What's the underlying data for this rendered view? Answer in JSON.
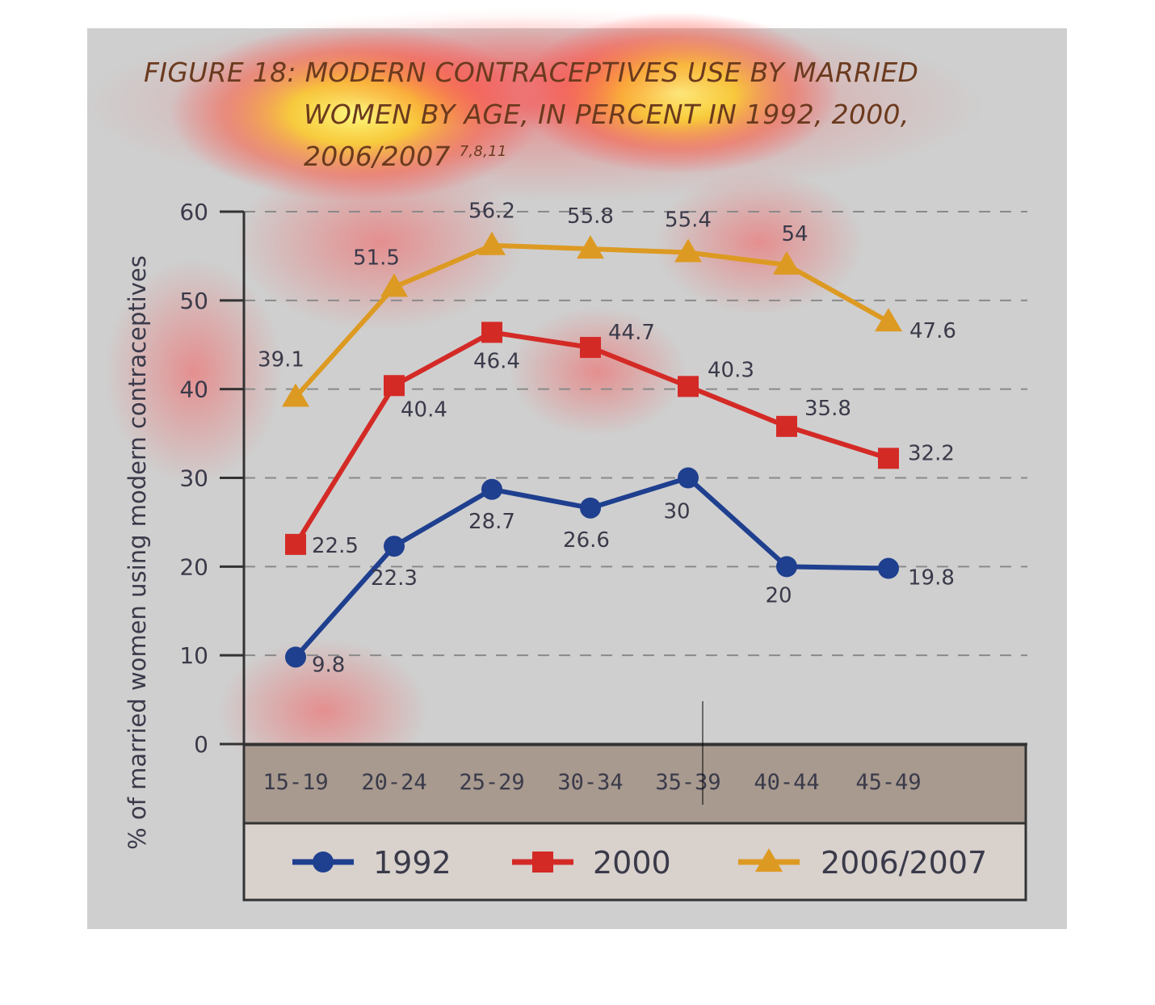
{
  "title": {
    "line1": "FIGURE 18: MODERN CONTRACEPTIVES USE BY MARRIED",
    "line2": "WOMEN BY AGE, IN PERCENT IN 1992, 2000,",
    "line3": "2006/2007",
    "refs": "7,8,11"
  },
  "chart_data": {
    "type": "line",
    "ylabel": "% of married women using modern contraceptives",
    "xlabel": "",
    "ylim": [
      0,
      60
    ],
    "yticks": [
      0,
      10,
      20,
      30,
      40,
      50,
      60
    ],
    "categories": [
      "15-19",
      "20-24",
      "25-29",
      "30-34",
      "35-39",
      "40-44",
      "45-49"
    ],
    "grid": "horizontal dashed",
    "legend_position": "bottom",
    "series": [
      {
        "name": "1992",
        "color": "#1f3f8f",
        "marker": "circle",
        "values": [
          9.8,
          22.3,
          28.7,
          26.6,
          30,
          20,
          19.8
        ]
      },
      {
        "name": "2000",
        "color": "#d42a26",
        "marker": "square",
        "values": [
          22.5,
          40.4,
          46.4,
          44.7,
          40.3,
          35.8,
          32.2
        ]
      },
      {
        "name": "2006/2007",
        "color": "#dd9a22",
        "marker": "triangle",
        "values": [
          39.1,
          51.5,
          56.2,
          55.8,
          55.4,
          54,
          47.6
        ]
      }
    ]
  }
}
